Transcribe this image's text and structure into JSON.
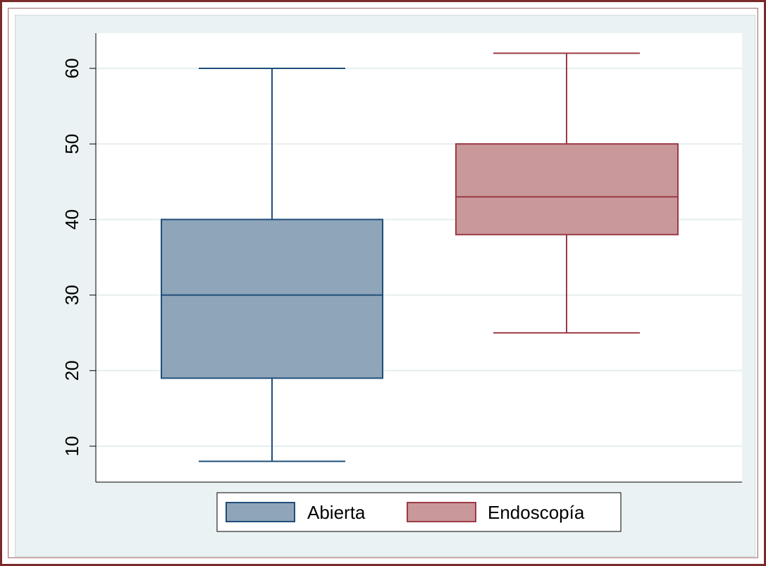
{
  "chart_data": {
    "type": "box",
    "title": "",
    "xlabel": "",
    "ylabel": "",
    "ylim": [
      5,
      65
    ],
    "yticks": [
      10,
      20,
      30,
      40,
      50,
      60
    ],
    "grid": true,
    "legend_position": "bottom",
    "series": [
      {
        "name": "Abierta",
        "min": 8,
        "q1": 19,
        "median": 30,
        "q3": 40,
        "max": 60,
        "fill": "#8fa5b9",
        "stroke": "#1f4e79"
      },
      {
        "name": "Endoscopía",
        "min": 25,
        "q1": 38,
        "median": 43,
        "q3": 50,
        "max": 62,
        "fill": "#c9989b",
        "stroke": "#9b3a44"
      }
    ]
  }
}
